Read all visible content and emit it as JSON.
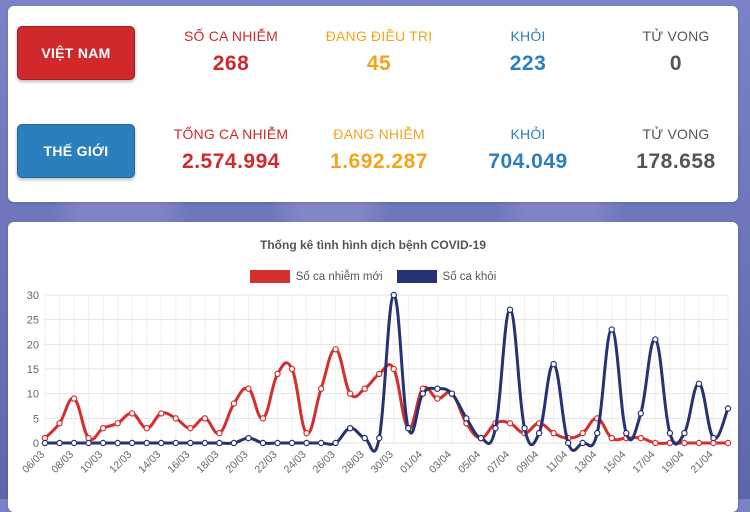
{
  "vietnam": {
    "button_label": "VIỆT NAM",
    "stats": [
      {
        "label": "SỐ CA NHIỄM",
        "value": "268"
      },
      {
        "label": "ĐANG ĐIỀU TRỊ",
        "value": "45"
      },
      {
        "label": "KHỎI",
        "value": "223"
      },
      {
        "label": "TỬ VONG",
        "value": "0"
      }
    ]
  },
  "world": {
    "button_label": "THẾ GIỚI",
    "stats": [
      {
        "label": "TỔNG CA NHIỄM",
        "value": "2.574.994"
      },
      {
        "label": "ĐANG NHIỄM",
        "value": "1.692.287"
      },
      {
        "label": "KHỎI",
        "value": "704.049"
      },
      {
        "label": "TỬ VONG",
        "value": "178.658"
      }
    ]
  },
  "colors": {
    "red": "#d0292b",
    "orange": "#f3a41d",
    "blue": "#2b7fbc",
    "gray": "#555555",
    "series_new_cases": "#d32f2f",
    "series_recovered": "#273273"
  },
  "chart_data": {
    "type": "line",
    "title": "Thống kê tình hình dịch bệnh COVID-19",
    "legend_position": "top",
    "grid": true,
    "ylim": [
      0,
      30
    ],
    "yticks": [
      0,
      5,
      10,
      15,
      20,
      25,
      30
    ],
    "x": [
      "06/03",
      "07/03",
      "08/03",
      "09/03",
      "10/03",
      "11/03",
      "12/03",
      "13/03",
      "14/03",
      "15/03",
      "16/03",
      "17/03",
      "18/03",
      "19/03",
      "20/03",
      "21/03",
      "22/03",
      "23/03",
      "24/03",
      "25/03",
      "26/03",
      "27/03",
      "28/03",
      "29/03",
      "30/03",
      "31/03",
      "01/04",
      "02/04",
      "03/04",
      "04/04",
      "05/04",
      "06/04",
      "07/04",
      "08/04",
      "09/04",
      "10/04",
      "11/04",
      "12/04",
      "13/04",
      "14/04",
      "15/04",
      "16/04",
      "17/04",
      "18/04",
      "19/04",
      "20/04",
      "21/04",
      "22/04"
    ],
    "x_tick_labels": [
      "06/03",
      "08/03",
      "10/03",
      "12/03",
      "14/03",
      "16/03",
      "18/03",
      "20/03",
      "22/03",
      "24/03",
      "26/03",
      "28/03",
      "30/03",
      "01/04",
      "03/04",
      "05/04",
      "07/04",
      "09/04",
      "11/04",
      "13/04",
      "15/04",
      "17/04",
      "19/04",
      "21/04"
    ],
    "series": [
      {
        "name": "Số ca nhiễm mới",
        "color": "#d32f2f",
        "values": [
          1,
          4,
          9,
          1,
          3,
          4,
          6,
          3,
          6,
          5,
          3,
          5,
          2,
          8,
          11,
          5,
          14,
          15,
          2,
          11,
          19,
          10,
          11,
          14,
          15,
          3,
          11,
          9,
          10,
          4,
          1,
          4,
          4,
          2,
          4,
          2,
          1,
          2,
          5,
          1,
          1,
          1,
          0,
          0,
          0,
          0,
          0,
          0
        ]
      },
      {
        "name": "Số ca khỏi",
        "color": "#273273",
        "values": [
          0,
          0,
          0,
          0,
          0,
          0,
          0,
          0,
          0,
          0,
          0,
          0,
          0,
          0,
          1,
          0,
          0,
          0,
          0,
          0,
          0,
          3,
          1,
          1,
          30,
          3,
          10,
          11,
          10,
          5,
          1,
          3,
          27,
          3,
          2,
          16,
          0,
          0,
          2,
          23,
          2,
          6,
          21,
          2,
          2,
          12,
          1,
          7
        ]
      }
    ]
  }
}
